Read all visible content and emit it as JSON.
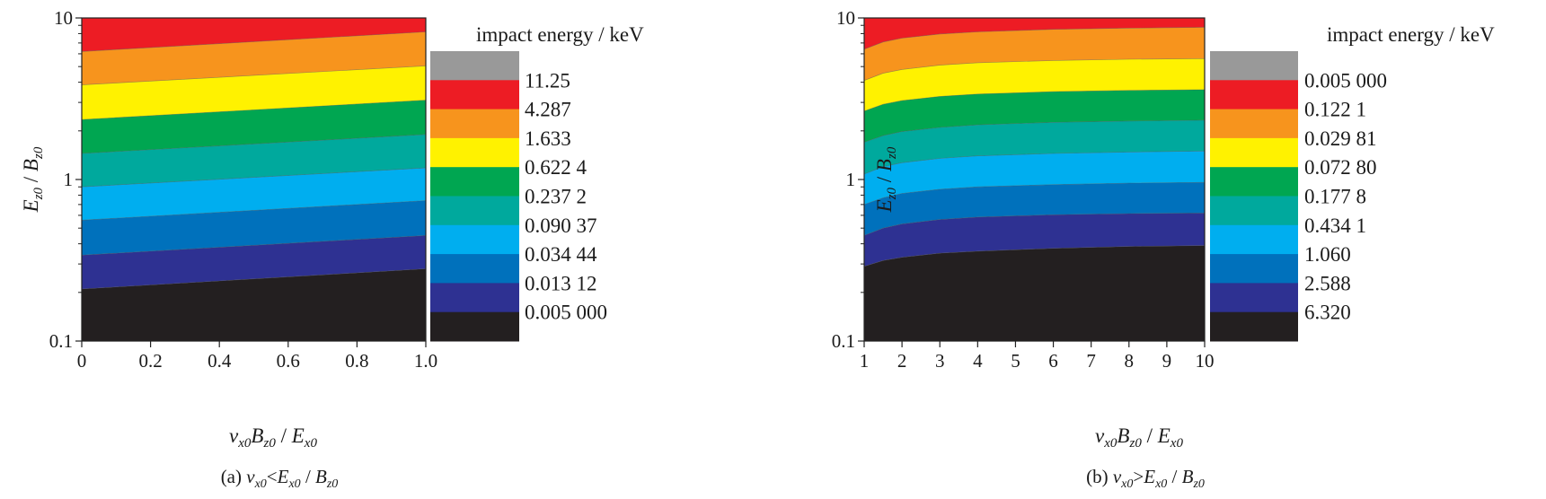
{
  "chart_data": [
    {
      "id": "a",
      "type": "contour",
      "colorbar_title": "impact energy / keV",
      "xlim": [
        0,
        1.0
      ],
      "x_ticks": [
        "0",
        "0.2",
        "0.4",
        "0.6",
        "0.8",
        "1.0"
      ],
      "y_scale": "log",
      "ylim": [
        0.1,
        10
      ],
      "y_ticks": [
        "0.1",
        "1",
        "10"
      ],
      "xlabel": {
        "v": "v",
        "vsub": "x0",
        "B": "B",
        "Bsub": "z0",
        "sep": " / ",
        "E": "E",
        "Esub": "x0"
      },
      "ylabel": {
        "E": "E",
        "Esub": "z0",
        "sep": " / ",
        "B": "B",
        "Bsub": "z0"
      },
      "caption": {
        "prefix": "(a) ",
        "v": "v",
        "vsub": "x0",
        "op": "<",
        "E": "E",
        "Esub": "x0",
        "sep": " / ",
        "B": "B",
        "Bsub": "z0"
      },
      "levels": [
        "0.005 000",
        "0.013 12",
        "0.034 44",
        "0.090 37",
        "0.237 2",
        "0.622 4",
        "1.633",
        "4.287",
        "11.25"
      ],
      "colors": [
        "#231f20",
        "#2e3192",
        "#0071bc",
        "#00aeef",
        "#00a99d",
        "#00a651",
        "#fff200",
        "#f7941d",
        "#ed1c24",
        "#999999"
      ],
      "boundaries": [
        {
          "x": [
            0,
            1.0
          ],
          "y": [
            0.21,
            0.28
          ]
        },
        {
          "x": [
            0,
            1.0
          ],
          "y": [
            0.34,
            0.45
          ]
        },
        {
          "x": [
            0,
            1.0
          ],
          "y": [
            0.56,
            0.74
          ]
        },
        {
          "x": [
            0,
            1.0
          ],
          "y": [
            0.9,
            1.18
          ]
        },
        {
          "x": [
            0,
            1.0
          ],
          "y": [
            1.45,
            1.9
          ]
        },
        {
          "x": [
            0,
            1.0
          ],
          "y": [
            2.35,
            3.1
          ]
        },
        {
          "x": [
            0,
            1.0
          ],
          "y": [
            3.85,
            5.05
          ]
        },
        {
          "x": [
            0,
            1.0
          ],
          "y": [
            6.2,
            8.2
          ]
        }
      ]
    },
    {
      "id": "b",
      "type": "contour",
      "colorbar_title": "impact energy / keV",
      "xlim": [
        1,
        10
      ],
      "x_ticks": [
        "1",
        "2",
        "3",
        "4",
        "5",
        "6",
        "7",
        "8",
        "9",
        "10"
      ],
      "y_scale": "log",
      "ylim": [
        0.1,
        10
      ],
      "y_ticks": [
        "0.1",
        "1",
        "10"
      ],
      "xlabel": {
        "v": "v",
        "vsub": "x0",
        "B": "B",
        "Bsub": "z0",
        "sep": " / ",
        "E": "E",
        "Esub": "x0"
      },
      "ylabel": {
        "E": "E",
        "Esub": "z0",
        "sep": " / ",
        "B": "B",
        "Bsub": "z0"
      },
      "caption": {
        "prefix": "(b) ",
        "v": "v",
        "vsub": "x0",
        "op": ">",
        "E": "E",
        "Esub": "x0",
        "sep": " / ",
        "B": "B",
        "Bsub": "z0"
      },
      "levels": [
        "0.005 000",
        "0.122 1",
        "0.029 81",
        "0.072 80",
        "0.177 8",
        "0.434 1",
        "1.060",
        "2.588",
        "6.320"
      ],
      "colors": [
        "#231f20",
        "#2e3192",
        "#0071bc",
        "#00aeef",
        "#00a99d",
        "#00a651",
        "#fff200",
        "#f7941d",
        "#ed1c24",
        "#999999"
      ],
      "boundaries": [
        {
          "x": [
            1,
            1.5,
            2,
            3,
            4,
            6,
            8,
            10
          ],
          "y": [
            0.29,
            0.315,
            0.33,
            0.35,
            0.36,
            0.375,
            0.385,
            0.39
          ]
        },
        {
          "x": [
            1,
            1.5,
            2,
            3,
            4,
            6,
            8,
            10
          ],
          "y": [
            0.45,
            0.5,
            0.53,
            0.565,
            0.585,
            0.605,
            0.615,
            0.62
          ]
        },
        {
          "x": [
            1,
            1.5,
            2,
            3,
            4,
            6,
            8,
            10
          ],
          "y": [
            0.7,
            0.77,
            0.82,
            0.87,
            0.9,
            0.93,
            0.95,
            0.96
          ]
        },
        {
          "x": [
            1,
            1.5,
            2,
            3,
            4,
            6,
            8,
            10
          ],
          "y": [
            1.08,
            1.2,
            1.27,
            1.35,
            1.4,
            1.45,
            1.48,
            1.5
          ]
        },
        {
          "x": [
            1,
            1.5,
            2,
            3,
            4,
            6,
            8,
            10
          ],
          "y": [
            1.7,
            1.87,
            1.98,
            2.1,
            2.18,
            2.26,
            2.3,
            2.33
          ]
        },
        {
          "x": [
            1,
            1.5,
            2,
            3,
            4,
            6,
            8,
            10
          ],
          "y": [
            2.65,
            2.92,
            3.08,
            3.27,
            3.38,
            3.5,
            3.56,
            3.6
          ]
        },
        {
          "x": [
            1,
            1.5,
            2,
            3,
            4,
            6,
            8,
            10
          ],
          "y": [
            4.1,
            4.55,
            4.8,
            5.1,
            5.28,
            5.45,
            5.55,
            5.6
          ]
        },
        {
          "x": [
            1,
            1.5,
            2,
            3,
            4,
            6,
            8,
            10
          ],
          "y": [
            6.4,
            7.1,
            7.5,
            7.95,
            8.2,
            8.5,
            8.65,
            8.75
          ]
        }
      ]
    }
  ]
}
